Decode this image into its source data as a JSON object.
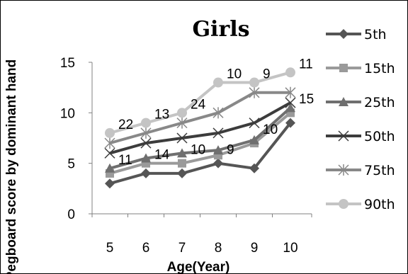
{
  "chart_data": {
    "type": "line",
    "title": "Girls",
    "xlabel": "Age(Year)",
    "ylabel": "Pegboard score by dominant hand",
    "x": [
      5,
      6,
      7,
      8,
      9,
      10
    ],
    "x_tick_labels": [
      "5",
      "6",
      "7",
      "8",
      "9",
      "10"
    ],
    "y_ticks": [
      0,
      5,
      10,
      15
    ],
    "y_tick_labels": [
      "0",
      "5",
      "10",
      "15"
    ],
    "ylim": [
      0,
      15
    ],
    "grid": false,
    "legend_position": "right",
    "series": [
      {
        "name": "5th",
        "values": [
          3,
          4,
          4,
          5,
          4.5,
          9
        ],
        "color": "#555555",
        "marker": "diamond"
      },
      {
        "name": "15th",
        "values": [
          4,
          5,
          5,
          5.8,
          7,
          10
        ],
        "color": "#9a9a9a",
        "marker": "square"
      },
      {
        "name": "25th",
        "values": [
          4.5,
          5.5,
          6,
          6.3,
          7.3,
          10.5
        ],
        "color": "#6f6f6f",
        "marker": "triangle"
      },
      {
        "name": "50th",
        "values": [
          6,
          7,
          7.5,
          8,
          9,
          11
        ],
        "color": "#3c3c3c",
        "marker": "x"
      },
      {
        "name": "75th",
        "values": [
          7,
          8,
          9,
          10,
          12,
          12
        ],
        "color": "#888888",
        "marker": "star"
      },
      {
        "name": "90th",
        "values": [
          8,
          9,
          10,
          13,
          13,
          14
        ],
        "color": "#c4c4c4",
        "marker": "circle"
      }
    ],
    "annotations": [
      {
        "text": "22",
        "x": 5,
        "y": 8
      },
      {
        "text": "13",
        "x": 6,
        "y": 9
      },
      {
        "text": "24",
        "x": 7,
        "y": 10
      },
      {
        "text": "10",
        "x": 8,
        "y": 13
      },
      {
        "text": "9",
        "x": 9,
        "y": 13
      },
      {
        "text": "11",
        "x": 10,
        "y": 14
      },
      {
        "text": "15",
        "x": 10,
        "y": 10.5
      },
      {
        "text": "11",
        "x": 5,
        "y": 4.5
      },
      {
        "text": "14",
        "x": 6,
        "y": 5
      },
      {
        "text": "10",
        "x": 7,
        "y": 5.5
      },
      {
        "text": "9",
        "x": 8,
        "y": 5.5
      },
      {
        "text": "10",
        "x": 9,
        "y": 7.5
      }
    ]
  }
}
